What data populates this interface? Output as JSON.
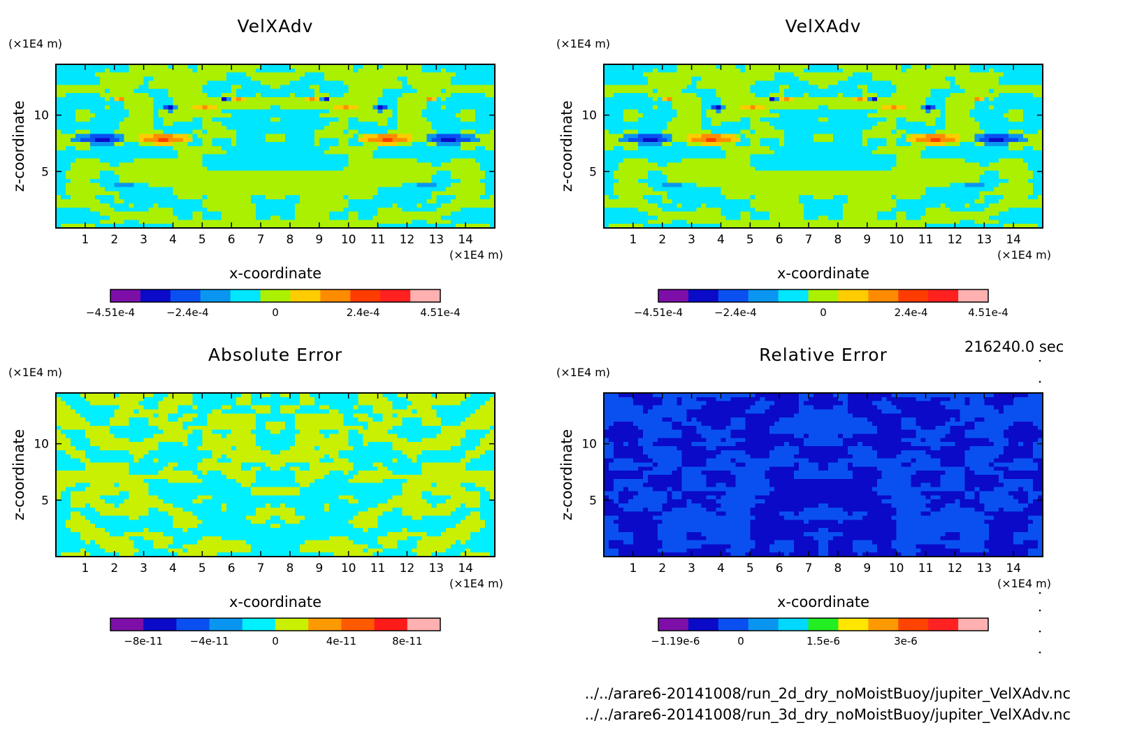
{
  "timestamp": "216240.0 sec",
  "files": [
    "../../arare6-20141008/run_2d_dry_noMoistBuoy/jupiter_VelXAdv.nc",
    "../../arare6-20141008/run_3d_dry_noMoistBuoy/jupiter_VelXAdv.nc"
  ],
  "chart_data": [
    {
      "type": "heatmap",
      "title": "VelXAdv",
      "xlabel": "x-coordinate",
      "ylabel": "z-coordinate",
      "x_unit": "(×1E4 m)",
      "y_unit": "(×1E4 m)",
      "xlim": [
        0,
        15
      ],
      "ylim": [
        0,
        14.5
      ],
      "x_ticks": [
        1,
        2,
        3,
        4,
        5,
        6,
        7,
        8,
        9,
        10,
        11,
        12,
        13,
        14
      ],
      "y_ticks": [
        5,
        10
      ],
      "palette": "velxadv",
      "colorbar_ticks": [
        {
          "value": -0.000451,
          "label": "-4.51e-4"
        },
        {
          "value": -0.00024,
          "label": "-2.4e-4"
        },
        {
          "value": 0,
          "label": "0"
        },
        {
          "value": 0.00024,
          "label": "2.4e-4"
        },
        {
          "value": 0.000451,
          "label": "4.51e-4"
        }
      ],
      "colorbar_range": [
        -0.000451,
        0.000451
      ]
    },
    {
      "type": "heatmap",
      "title": "VelXAdv",
      "xlabel": "x-coordinate",
      "ylabel": "z-coordinate",
      "x_unit": "(×1E4 m)",
      "y_unit": "(×1E4 m)",
      "xlim": [
        0,
        15
      ],
      "ylim": [
        0,
        14.5
      ],
      "x_ticks": [
        1,
        2,
        3,
        4,
        5,
        6,
        7,
        8,
        9,
        10,
        11,
        12,
        13,
        14
      ],
      "y_ticks": [
        5,
        10
      ],
      "palette": "velxadv",
      "colorbar_ticks": [
        {
          "value": -0.000451,
          "label": "-4.51e-4"
        },
        {
          "value": -0.00024,
          "label": "-2.4e-4"
        },
        {
          "value": 0,
          "label": "0"
        },
        {
          "value": 0.00024,
          "label": "2.4e-4"
        },
        {
          "value": 0.000451,
          "label": "4.51e-4"
        }
      ],
      "colorbar_range": [
        -0.000451,
        0.000451
      ]
    },
    {
      "type": "heatmap",
      "title": "Absolute Error",
      "xlabel": "x-coordinate",
      "ylabel": "z-coordinate",
      "x_unit": "(×1E4 m)",
      "y_unit": "(×1E4 m)",
      "xlim": [
        0,
        15
      ],
      "ylim": [
        0,
        14.5
      ],
      "x_ticks": [
        1,
        2,
        3,
        4,
        5,
        6,
        7,
        8,
        9,
        10,
        11,
        12,
        13,
        14
      ],
      "y_ticks": [
        5,
        10
      ],
      "palette": "abserr",
      "colorbar_ticks": [
        {
          "value": -8e-11,
          "label": "-8e-11"
        },
        {
          "value": -4e-11,
          "label": "-4e-11"
        },
        {
          "value": 0,
          "label": "0"
        },
        {
          "value": 4e-11,
          "label": "4e-11"
        },
        {
          "value": 8e-11,
          "label": "8e-11"
        }
      ],
      "colorbar_range": [
        -1e-10,
        1e-10
      ]
    },
    {
      "type": "heatmap",
      "title": "Relative Error",
      "xlabel": "x-coordinate",
      "ylabel": "z-coordinate",
      "x_unit": "(×1E4 m)",
      "y_unit": "(×1E4 m)",
      "xlim": [
        0,
        15
      ],
      "ylim": [
        0,
        14.5
      ],
      "x_ticks": [
        1,
        2,
        3,
        4,
        5,
        6,
        7,
        8,
        9,
        10,
        11,
        12,
        13,
        14
      ],
      "y_ticks": [
        5,
        10
      ],
      "palette": "relerr",
      "colorbar_ticks": [
        {
          "value": -1.19e-06,
          "label": "-1.19e-6"
        },
        {
          "value": 0,
          "label": "0"
        },
        {
          "value": 1.5e-06,
          "label": "1.5e-6"
        },
        {
          "value": 3e-06,
          "label": "3e-6"
        }
      ],
      "colorbar_range": [
        -1.5e-06,
        4.5e-06
      ]
    }
  ],
  "palettes": {
    "velxadv": [
      "#7d0fa8",
      "#0a0ac8",
      "#0a50f0",
      "#0a96f0",
      "#00e6ff",
      "#aaf000",
      "#ffcc00",
      "#ff8c00",
      "#ff3c00",
      "#ff2020",
      "#ffb0b0"
    ],
    "abserr": [
      "#7d0fa8",
      "#0a0ac8",
      "#0a50f0",
      "#0a96f0",
      "#00f0ff",
      "#c8f000",
      "#ff9900",
      "#ff5a00",
      "#ff1a1a",
      "#ffb0b0"
    ],
    "relerr": [
      "#7d0fa8",
      "#0a0ac8",
      "#0a50f0",
      "#0a96f0",
      "#00d8ff",
      "#22ee22",
      "#ffe600",
      "#ff9900",
      "#ff4400",
      "#ff2222",
      "#ffb0b0"
    ]
  }
}
